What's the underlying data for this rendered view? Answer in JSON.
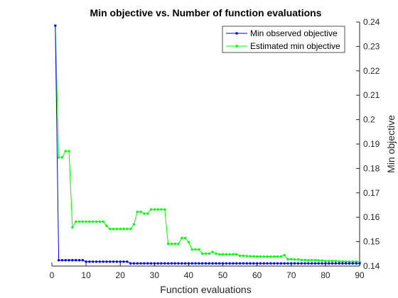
{
  "chart_data": {
    "type": "line",
    "title": "Min objective vs. Number of function evaluations",
    "xlabel": "Function evaluations",
    "ylabel": "Min objective",
    "xlim": [
      0,
      90
    ],
    "ylim": [
      0.14,
      0.24
    ],
    "xticks": [
      "0",
      "10",
      "20",
      "30",
      "40",
      "50",
      "60",
      "70",
      "80",
      "90"
    ],
    "yticks": [
      "0.14",
      "0.15",
      "0.16",
      "0.17",
      "0.18",
      "0.19",
      "0.2",
      "0.21",
      "0.22",
      "0.23",
      "0.24"
    ],
    "y_axis_side": "right",
    "grid": false,
    "legend_position": "top-right",
    "series": [
      {
        "name": "Min observed objective",
        "color": "#0000ff",
        "marker": "dot",
        "x": [
          1,
          2,
          3,
          4,
          5,
          6,
          7,
          8,
          9,
          10,
          11,
          12,
          13,
          14,
          15,
          16,
          17,
          18,
          19,
          20,
          21,
          22,
          23,
          24,
          25,
          26,
          27,
          28,
          29,
          30,
          31,
          32,
          33,
          34,
          35,
          36,
          37,
          38,
          39,
          40,
          41,
          42,
          43,
          44,
          45,
          46,
          47,
          48,
          49,
          50,
          51,
          52,
          53,
          54,
          55,
          56,
          57,
          58,
          59,
          60,
          61,
          62,
          63,
          64,
          65,
          66,
          67,
          68,
          69,
          70,
          71,
          72,
          73,
          74,
          75,
          76,
          77,
          78,
          79,
          80,
          81,
          82,
          83,
          84,
          85,
          86,
          87,
          88,
          89,
          90
        ],
        "y": [
          0.2385,
          0.1424,
          0.1424,
          0.1424,
          0.1424,
          0.1424,
          0.1424,
          0.1424,
          0.1424,
          0.1418,
          0.1418,
          0.1418,
          0.1418,
          0.1418,
          0.1418,
          0.1418,
          0.1418,
          0.1418,
          0.1418,
          0.1418,
          0.1418,
          0.1418,
          0.1411,
          0.1411,
          0.1411,
          0.1411,
          0.1411,
          0.1411,
          0.1411,
          0.1411,
          0.1411,
          0.1411,
          0.1411,
          0.1411,
          0.1411,
          0.1411,
          0.1411,
          0.1411,
          0.1411,
          0.1411,
          0.1411,
          0.1411,
          0.1411,
          0.1411,
          0.1411,
          0.1411,
          0.1411,
          0.1411,
          0.1411,
          0.1411,
          0.1411,
          0.1411,
          0.1411,
          0.1411,
          0.1411,
          0.1411,
          0.1411,
          0.1411,
          0.1411,
          0.1411,
          0.1411,
          0.1411,
          0.1411,
          0.1411,
          0.1411,
          0.1411,
          0.1411,
          0.1411,
          0.1411,
          0.1411,
          0.1411,
          0.1411,
          0.1411,
          0.1411,
          0.1411,
          0.1411,
          0.1411,
          0.1411,
          0.1411,
          0.1411,
          0.1411,
          0.1411,
          0.1411,
          0.1411,
          0.1411,
          0.1411,
          0.1411,
          0.1411,
          0.1411,
          0.1411
        ]
      },
      {
        "name": "Estimated min objective",
        "color": "#00ff00",
        "marker": "dot",
        "x": [
          1,
          2,
          3,
          4,
          5,
          6,
          7,
          8,
          9,
          10,
          11,
          12,
          13,
          14,
          15,
          16,
          17,
          18,
          19,
          20,
          21,
          22,
          23,
          24,
          25,
          26,
          27,
          28,
          29,
          30,
          31,
          32,
          33,
          34,
          35,
          36,
          37,
          38,
          39,
          40,
          41,
          42,
          43,
          44,
          45,
          46,
          47,
          48,
          49,
          50,
          51,
          52,
          53,
          54,
          55,
          56,
          57,
          58,
          59,
          60,
          61,
          62,
          63,
          64,
          65,
          66,
          67,
          68,
          69,
          70,
          71,
          72,
          73,
          74,
          75,
          76,
          77,
          78,
          79,
          80,
          81,
          82,
          83,
          84,
          85,
          86,
          87,
          88,
          89,
          90
        ],
        "y": [
          0.2385,
          0.1845,
          0.1845,
          0.1871,
          0.1871,
          0.1558,
          0.1582,
          0.1582,
          0.1582,
          0.1582,
          0.1582,
          0.1582,
          0.1582,
          0.1582,
          0.1582,
          0.1565,
          0.1552,
          0.1552,
          0.1552,
          0.1552,
          0.1552,
          0.1552,
          0.1552,
          0.1571,
          0.1622,
          0.1622,
          0.1615,
          0.1615,
          0.1632,
          0.1632,
          0.1632,
          0.1632,
          0.1632,
          0.1491,
          0.1491,
          0.1491,
          0.1491,
          0.1515,
          0.1515,
          0.1498,
          0.1468,
          0.1468,
          0.1468,
          0.1451,
          0.1451,
          0.1451,
          0.1458,
          0.1451,
          0.1448,
          0.1448,
          0.1448,
          0.1448,
          0.1448,
          0.1448,
          0.1442,
          0.1442,
          0.1441,
          0.144,
          0.144,
          0.1439,
          0.1439,
          0.1439,
          0.1439,
          0.1439,
          0.1439,
          0.1439,
          0.1439,
          0.1445,
          0.1428,
          0.1428,
          0.1427,
          0.1427,
          0.1425,
          0.1425,
          0.1424,
          0.1424,
          0.1424,
          0.1423,
          0.1423,
          0.1421,
          0.1421,
          0.1421,
          0.1421,
          0.1419,
          0.1419,
          0.1418,
          0.1418,
          0.1418,
          0.1418,
          0.1417
        ]
      }
    ]
  }
}
